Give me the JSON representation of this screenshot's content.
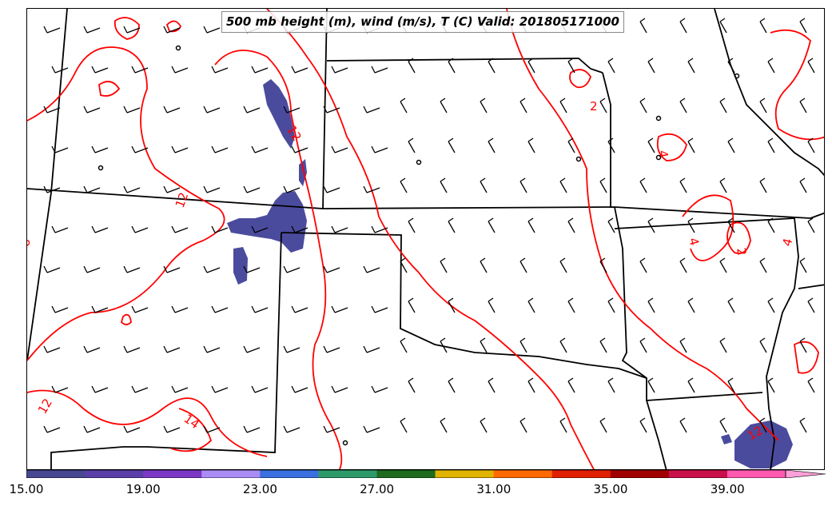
{
  "title": "500 mb height (m), wind (m/s), T (C) Valid: 201805171000",
  "map": {
    "state_boundary_color": "#000000",
    "contour_color": "#ff0000",
    "barb_color": "#000000",
    "contour_labels": [
      "12",
      "2",
      "4",
      "12",
      "8",
      "12",
      "14",
      "4",
      "2",
      "4",
      "12"
    ],
    "shading_color": "#4b4b9e"
  },
  "colorbar": {
    "tick_labels": [
      "15.00",
      "19.00",
      "23.00",
      "27.00",
      "31.00",
      "35.00",
      "39.00"
    ],
    "colors": [
      "#474792",
      "#5a3fa8",
      "#7b38c4",
      "#a98cf5",
      "#3a6fe0",
      "#2e9a6a",
      "#1e6b1e",
      "#e0b400",
      "#ff6a00",
      "#e02000",
      "#a00000",
      "#c8104a",
      "#ff5ab0",
      "#ffa0d8"
    ]
  }
}
